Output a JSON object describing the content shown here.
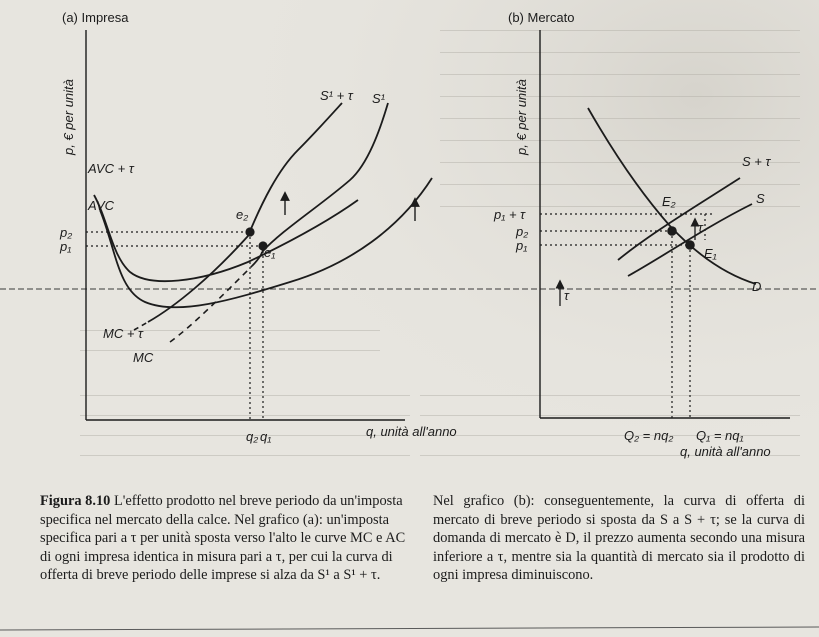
{
  "panel_a": {
    "title": "(a) Impresa",
    "y_axis": "p, € per unità",
    "x_axis": "q, unità all'anno",
    "curves": {
      "s1_tau": "S¹ + τ",
      "s1": "S¹",
      "avc_tau": "AVC + τ",
      "avc": "AVC",
      "mc_tau": "MC + τ",
      "mc": "MC"
    },
    "points": {
      "e2": "e₂",
      "e1": "e₁"
    },
    "y_ticks": {
      "p2": "p₂",
      "p1": "p₁"
    },
    "x_ticks": {
      "q2": "q₂",
      "q1": "q₁"
    }
  },
  "panel_b": {
    "title": "(b) Mercato",
    "y_axis": "p, € per unità",
    "x_axis": "q, unità all'anno",
    "curves": {
      "s_tau": "S + τ",
      "s": "S",
      "d": "D"
    },
    "points": {
      "e2": "E₂",
      "e1": "E₁"
    },
    "y_ticks": {
      "p1_tau": "p₁ + τ",
      "p2": "p₂",
      "p1": "p₁"
    },
    "x_ticks": {
      "q2": "Q₂ = nq₂",
      "q1": "Q₁ = nq₁"
    },
    "tau_label": "τ"
  },
  "caption_left": {
    "fig_num": "Figura 8.10",
    "text": "L'effetto prodotto nel breve periodo da un'imposta specifica nel mercato della calce. Nel grafico (a): un'imposta specifica pari a τ per unità sposta verso l'alto le curve MC e AC di ogni impresa identica in misura pari a τ, per cui la curva di offerta di breve periodo delle imprese si alza da S¹ a S¹ + τ."
  },
  "caption_right": {
    "text": "Nel grafico (b): conseguentemente, la curva di offerta di mercato di breve periodo si sposta da S a S + τ; se la curva di domanda di mercato è D, il prezzo aumenta secondo una misura inferiore a τ, mentre sia la quantità di mercato sia il prodotto di ogni impresa diminuiscono."
  },
  "colors": {
    "ink": "#1c1c1c",
    "paper": "#e7e5df"
  }
}
